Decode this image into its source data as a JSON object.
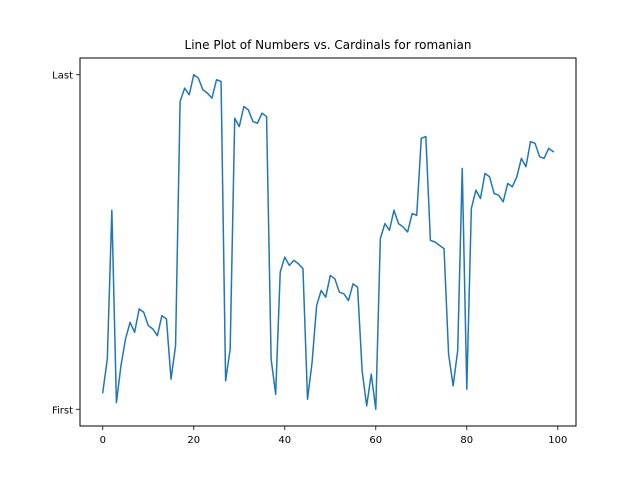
{
  "chart_data": {
    "type": "line",
    "title": "Line Plot of Numbers vs. Cardinals for romanian",
    "xlabel": "",
    "ylabel": "",
    "xlim": [
      -5,
      104
    ],
    "ylim": [
      -0.05,
      1.05
    ],
    "x_ticks": [
      0,
      20,
      40,
      60,
      80,
      100
    ],
    "x_tick_labels": [
      "0",
      "20",
      "40",
      "60",
      "80",
      "100"
    ],
    "y_ticks": [
      0,
      1
    ],
    "y_tick_labels": [
      "First",
      "Last"
    ],
    "grid": false,
    "line_color": "#1f77b4",
    "x": [
      0,
      1,
      2,
      3,
      4,
      5,
      6,
      7,
      8,
      9,
      10,
      11,
      12,
      13,
      14,
      15,
      16,
      17,
      18,
      19,
      20,
      21,
      22,
      23,
      24,
      25,
      26,
      27,
      28,
      29,
      30,
      31,
      32,
      33,
      34,
      35,
      36,
      37,
      38,
      39,
      40,
      41,
      42,
      43,
      44,
      45,
      46,
      47,
      48,
      49,
      50,
      51,
      52,
      53,
      54,
      55,
      56,
      57,
      58,
      59,
      60,
      61,
      62,
      63,
      64,
      65,
      66,
      67,
      68,
      69,
      70,
      71,
      72,
      73,
      74,
      75,
      76,
      77,
      78,
      79,
      80,
      81,
      82,
      83,
      84,
      85,
      86,
      87,
      88,
      89,
      90,
      91,
      92,
      93,
      94,
      95,
      96,
      97,
      98,
      99
    ],
    "y": [
      0.05,
      0.15,
      0.595,
      0.02,
      0.13,
      0.21,
      0.26,
      0.23,
      0.3,
      0.29,
      0.25,
      0.24,
      0.22,
      0.28,
      0.27,
      0.09,
      0.19,
      0.92,
      0.96,
      0.94,
      1.0,
      0.99,
      0.955,
      0.945,
      0.93,
      0.985,
      0.98,
      0.085,
      0.18,
      0.87,
      0.845,
      0.905,
      0.895,
      0.86,
      0.855,
      0.885,
      0.875,
      0.15,
      0.045,
      0.41,
      0.455,
      0.43,
      0.445,
      0.435,
      0.42,
      0.03,
      0.14,
      0.31,
      0.355,
      0.335,
      0.4,
      0.39,
      0.35,
      0.345,
      0.325,
      0.375,
      0.365,
      0.115,
      0.01,
      0.105,
      0.0,
      0.51,
      0.555,
      0.535,
      0.595,
      0.555,
      0.545,
      0.53,
      0.585,
      0.58,
      0.81,
      0.815,
      0.505,
      0.5,
      0.49,
      0.48,
      0.165,
      0.07,
      0.175,
      0.72,
      0.06,
      0.6,
      0.655,
      0.63,
      0.705,
      0.695,
      0.645,
      0.64,
      0.62,
      0.675,
      0.665,
      0.695,
      0.75,
      0.725,
      0.8,
      0.795,
      0.755,
      0.75,
      0.78,
      0.77
    ]
  }
}
